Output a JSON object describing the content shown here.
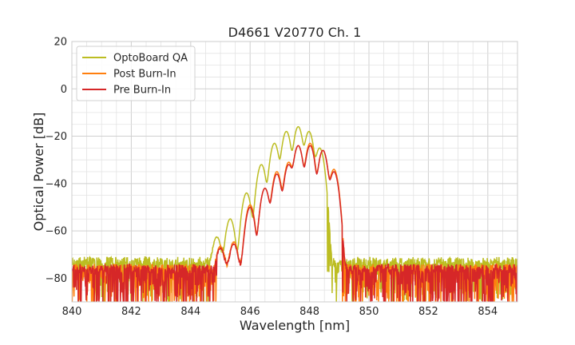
{
  "chart_data": {
    "type": "line",
    "title": "D4661 V20770 Ch. 1",
    "xlabel": "Wavelength [nm]",
    "ylabel": "Optical Power [dB]",
    "xlim": [
      840,
      855
    ],
    "ylim": [
      -90,
      20
    ],
    "xticks": [
      840,
      842,
      844,
      846,
      848,
      850,
      852,
      854
    ],
    "yticks": [
      20,
      0,
      -20,
      -40,
      -60,
      -80
    ],
    "xtick_labels": [
      "840",
      "842",
      "844",
      "846",
      "848",
      "850",
      "852",
      "854"
    ],
    "ytick_labels": [
      "20",
      "0",
      "−20",
      "−40",
      "−60",
      "−80"
    ],
    "grid": true,
    "legend_position": "top-left",
    "series": [
      {
        "name": "OptoBoard QA",
        "color": "#bcbd22",
        "noise_floor": -73,
        "peaks": [
          [
            844.88,
            -63
          ],
          [
            845.33,
            -55
          ],
          [
            845.88,
            -44
          ],
          [
            846.38,
            -32
          ],
          [
            846.82,
            -23
          ],
          [
            847.22,
            -18
          ],
          [
            847.62,
            -16
          ],
          [
            847.98,
            -18
          ],
          [
            848.34,
            -25
          ]
        ],
        "band": [
          844.7,
          848.6
        ]
      },
      {
        "name": "Post Burn-In",
        "color": "#ff7f0e",
        "noise_floor": -76,
        "peaks": [
          [
            845.0,
            -67
          ],
          [
            845.45,
            -65
          ],
          [
            846.0,
            -49
          ],
          [
            846.5,
            -42
          ],
          [
            846.9,
            -35
          ],
          [
            847.3,
            -31
          ],
          [
            847.62,
            -24
          ],
          [
            848.02,
            -23
          ],
          [
            848.45,
            -26
          ],
          [
            848.82,
            -34
          ]
        ],
        "band": [
          844.9,
          849.1
        ]
      },
      {
        "name": "Pre Burn-In",
        "color": "#d62728",
        "noise_floor": -76,
        "peaks": [
          [
            845.0,
            -68
          ],
          [
            845.45,
            -66
          ],
          [
            846.0,
            -50
          ],
          [
            846.5,
            -42
          ],
          [
            846.9,
            -36
          ],
          [
            847.3,
            -32
          ],
          [
            847.62,
            -24
          ],
          [
            848.02,
            -24
          ],
          [
            848.45,
            -26
          ],
          [
            848.82,
            -35
          ]
        ],
        "band": [
          844.9,
          849.1
        ]
      }
    ]
  }
}
